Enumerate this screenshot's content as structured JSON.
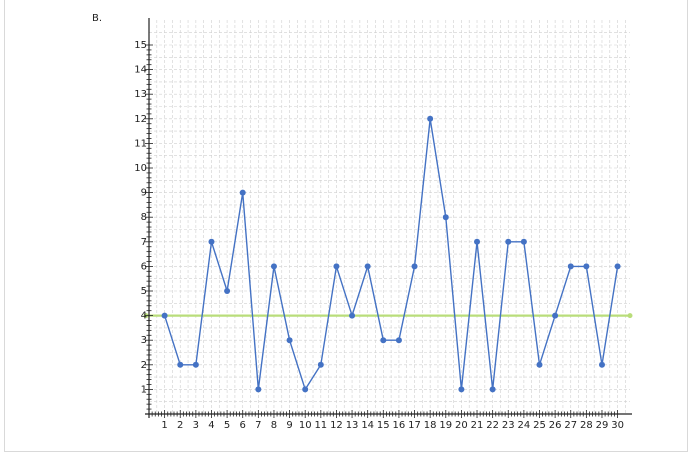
{
  "option": {
    "label": "B."
  },
  "colors": {
    "series": "#4472c4",
    "reference_line": "#b9dd7a",
    "grid": "#cfcfcf",
    "axis": "#222222"
  },
  "chart_data": {
    "type": "line",
    "title": "",
    "xlabel": "",
    "ylabel": "",
    "xlim": [
      0,
      30
    ],
    "ylim": [
      0,
      15
    ],
    "x_ticks": [
      1,
      2,
      3,
      4,
      5,
      6,
      7,
      8,
      9,
      10,
      11,
      12,
      13,
      14,
      15,
      16,
      17,
      18,
      19,
      20,
      21,
      22,
      23,
      24,
      25,
      26,
      27,
      28,
      29,
      30
    ],
    "y_ticks": [
      1,
      2,
      3,
      4,
      5,
      6,
      7,
      8,
      9,
      10,
      11,
      12,
      13,
      14,
      15
    ],
    "grid": true,
    "legend": "none",
    "x": [
      1,
      2,
      3,
      4,
      5,
      6,
      7,
      8,
      9,
      10,
      11,
      12,
      13,
      14,
      15,
      16,
      17,
      18,
      19,
      20,
      21,
      22,
      23,
      24,
      25,
      26,
      27,
      28,
      29,
      30
    ],
    "series": [
      {
        "values": [
          4,
          2,
          2,
          7,
          5,
          9,
          1,
          6,
          3,
          1,
          2,
          6,
          4,
          6,
          3,
          3,
          6,
          12,
          8,
          1,
          7,
          1,
          7,
          7,
          2,
          4,
          6,
          6,
          2,
          6
        ]
      }
    ],
    "reference_line": {
      "y": 4
    }
  }
}
